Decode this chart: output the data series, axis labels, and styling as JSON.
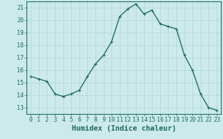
{
  "x": [
    0,
    1,
    2,
    3,
    4,
    5,
    6,
    7,
    8,
    9,
    10,
    11,
    12,
    13,
    14,
    15,
    16,
    17,
    18,
    19,
    20,
    21,
    22,
    23
  ],
  "y": [
    15.5,
    15.3,
    15.1,
    14.1,
    13.9,
    14.1,
    14.4,
    15.5,
    16.5,
    17.2,
    18.3,
    20.3,
    20.9,
    21.3,
    20.5,
    20.8,
    19.7,
    19.5,
    19.3,
    17.2,
    16.0,
    14.1,
    13.0,
    12.8
  ],
  "line_color": "#1a6b5a",
  "marker": "+",
  "marker_size": 3,
  "line_width": 1.0,
  "bg_color": "#cceaea",
  "grid_color": "#b0d4d4",
  "xlabel": "Humidex (Indice chaleur)",
  "ylim": [
    12.5,
    21.5
  ],
  "xlim": [
    -0.5,
    23.5
  ],
  "yticks": [
    13,
    14,
    15,
    16,
    17,
    18,
    19,
    20,
    21
  ],
  "xticks": [
    0,
    1,
    2,
    3,
    4,
    5,
    6,
    7,
    8,
    9,
    10,
    11,
    12,
    13,
    14,
    15,
    16,
    17,
    18,
    19,
    20,
    21,
    22,
    23
  ],
  "tick_fontsize": 6.0,
  "xlabel_fontsize": 7.5
}
